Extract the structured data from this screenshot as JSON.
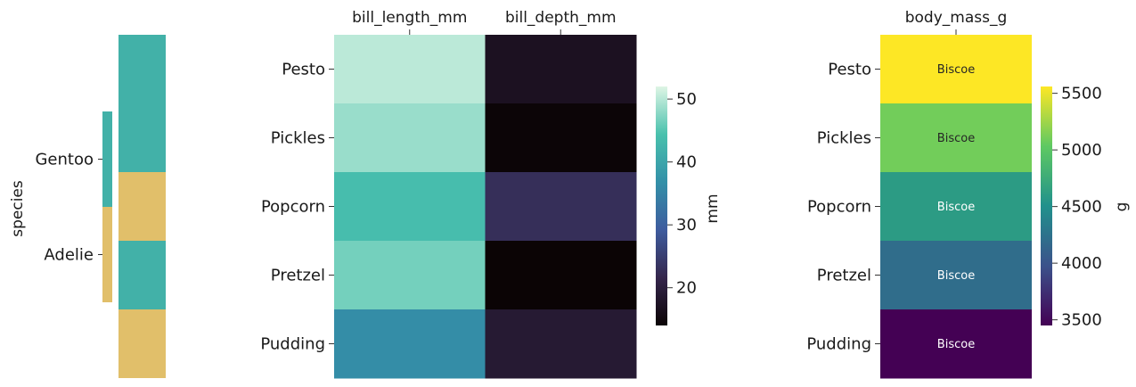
{
  "chart_data": [
    {
      "type": "heatmap",
      "name": "species-annotation",
      "ylabel": "species",
      "group_labels": [
        "Gentoo",
        "Adelie"
      ],
      "row_species": [
        "Gentoo",
        "Gentoo",
        "Adelie",
        "Gentoo",
        "Adelie"
      ],
      "group_colors": {
        "Gentoo": "#42b1a8",
        "Adelie": "#e1bf6a"
      }
    },
    {
      "type": "heatmap",
      "name": "measurements",
      "columns": [
        "bill_length_mm",
        "bill_depth_mm"
      ],
      "rows": [
        "Pesto",
        "Pickles",
        "Popcorn",
        "Pretzel",
        "Pudding"
      ],
      "values": [
        [
          50.2,
          17.0
        ],
        [
          48.5,
          14.2
        ],
        [
          43.8,
          22.8
        ],
        [
          46.6,
          14.0
        ],
        [
          36.4,
          18.9
        ]
      ],
      "colormap": "mako",
      "vmin": 14,
      "vmax": 52,
      "colorbar": {
        "label": "mm",
        "ticks": [
          20,
          30,
          40,
          50
        ]
      }
    },
    {
      "type": "heatmap",
      "name": "body-mass",
      "columns": [
        "body_mass_g"
      ],
      "rows": [
        "Pesto",
        "Pickles",
        "Popcorn",
        "Pretzel",
        "Pudding"
      ],
      "values": [
        5560,
        5100,
        4600,
        4200,
        3450
      ],
      "annotations": [
        "Biscoe",
        "Biscoe",
        "Biscoe",
        "Biscoe",
        "Biscoe"
      ],
      "colormap": "viridis",
      "vmin": 3450,
      "vmax": 5560,
      "colorbar": {
        "label": "g",
        "ticks": [
          3500,
          4000,
          4500,
          5000,
          5500
        ]
      }
    }
  ]
}
